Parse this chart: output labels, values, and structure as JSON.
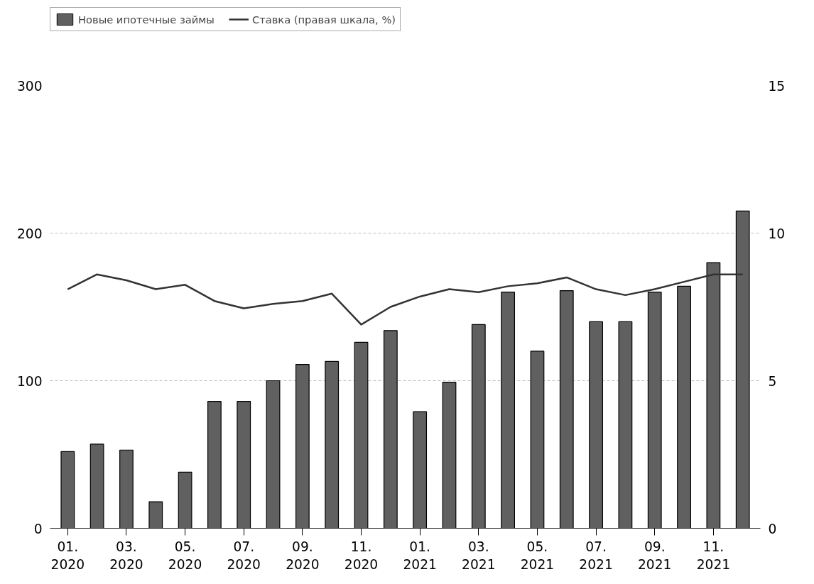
{
  "chart_data": {
    "type": "bar",
    "categories": [
      "01.\n2020",
      null,
      "03.\n2020",
      null,
      "05.\n2020",
      null,
      "07.\n2020",
      null,
      "09.\n2020",
      null,
      "11.\n2020",
      null,
      "01.\n2021",
      null,
      "03.\n2021",
      null,
      "05.\n2021",
      null,
      "07.\n2021",
      null,
      "09.\n2021",
      null,
      "11.\n2021",
      null
    ],
    "series": [
      {
        "name": "Новые ипотечные займы",
        "color": "#606060",
        "values": [
          52,
          57,
          53,
          18,
          38,
          86,
          86,
          100,
          111,
          113,
          126,
          134,
          79,
          99,
          138,
          160,
          120,
          161,
          140,
          140,
          160,
          164,
          180,
          215
        ]
      },
      {
        "name": "Ставка (правая шкала, %)",
        "type": "line",
        "axis": "y2",
        "color": "#333333",
        "values": [
          8.1,
          8.6,
          8.4,
          8.1,
          8.25,
          7.7,
          7.45,
          7.6,
          7.7,
          7.95,
          6.9,
          7.5,
          7.85,
          8.1,
          8.0,
          8.2,
          8.3,
          8.5,
          8.1,
          7.9,
          8.1,
          8.35,
          8.6,
          8.6
        ]
      }
    ],
    "ylim": [
      0,
      300
    ],
    "yticks": [
      0,
      100,
      200,
      300
    ],
    "y2lim": [
      0,
      15
    ],
    "y2ticks": [
      0,
      5,
      10,
      15
    ],
    "grid": "y",
    "legend": "top left"
  }
}
